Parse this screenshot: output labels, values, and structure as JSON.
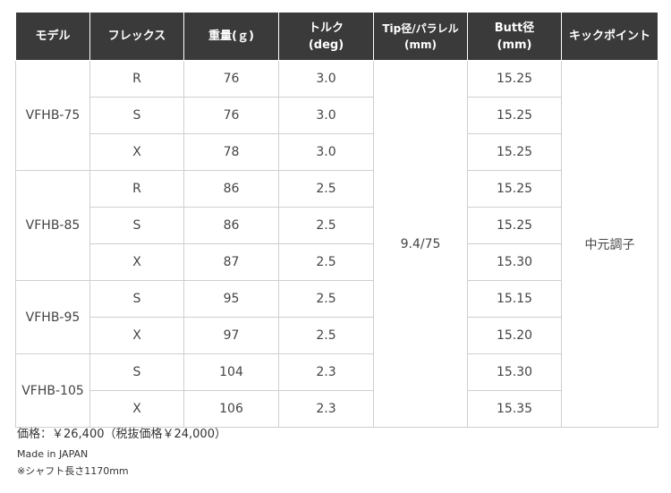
{
  "headers": {
    "model": "モデル",
    "flex": "フレックス",
    "weight": "重量(ｇ)",
    "torque_1": "トルク",
    "torque_2": "(deg)",
    "tip_1": "Tip径/パラレル",
    "tip_2": "(mm)",
    "butt_1": "Butt径",
    "butt_2": "(mm)",
    "kick": "キックポイント"
  },
  "models": [
    "VFHB-75",
    "VFHB-85",
    "VFHB-95",
    "VFHB-105"
  ],
  "tip_parallel": "9.4/75",
  "kick_point": "中元調子",
  "rows": [
    {
      "flex": "R",
      "weight": "76",
      "torque": "3.0",
      "butt": "15.25"
    },
    {
      "flex": "S",
      "weight": "76",
      "torque": "3.0",
      "butt": "15.25"
    },
    {
      "flex": "X",
      "weight": "78",
      "torque": "3.0",
      "butt": "15.25"
    },
    {
      "flex": "R",
      "weight": "86",
      "torque": "2.5",
      "butt": "15.25"
    },
    {
      "flex": "S",
      "weight": "86",
      "torque": "2.5",
      "butt": "15.25"
    },
    {
      "flex": "X",
      "weight": "87",
      "torque": "2.5",
      "butt": "15.30"
    },
    {
      "flex": "S",
      "weight": "95",
      "torque": "2.5",
      "butt": "15.15"
    },
    {
      "flex": "X",
      "weight": "97",
      "torque": "2.5",
      "butt": "15.20"
    },
    {
      "flex": "S",
      "weight": "104",
      "torque": "2.3",
      "butt": "15.30"
    },
    {
      "flex": "X",
      "weight": "106",
      "torque": "2.3",
      "butt": "15.35"
    }
  ],
  "notes": {
    "price": "価格：￥26,400（税抜価格￥24,000）",
    "made_in": "Made in JAPAN",
    "shaft_length": "※シャフト長さ1170mm"
  }
}
